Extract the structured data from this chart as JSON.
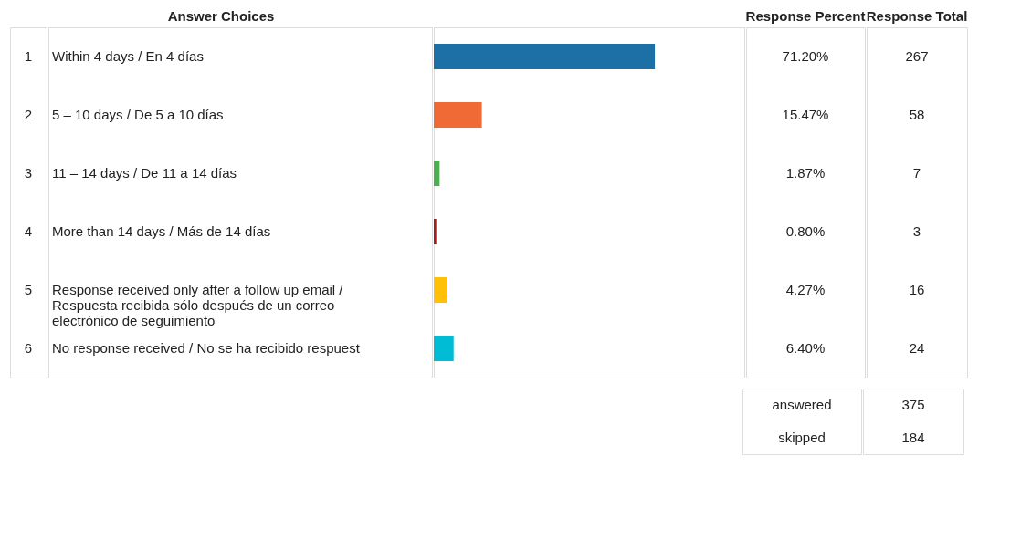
{
  "chart_data": {
    "type": "bar",
    "orientation": "horizontal",
    "ylabel": "Answer Choices",
    "categories": [
      "Within 4 days / En 4 días",
      "5 – 10 days / De 5 a 10 días",
      "11 – 14 days / De 11 a 14 días",
      "More than 14 days / Más de 14 días",
      "Response received only after a follow up email / Respuesta recibida sólo después de un correo electrónico de seguimiento",
      "No response received / No se ha recibido respuest"
    ],
    "values": [
      71.2,
      15.47,
      1.87,
      0.8,
      4.27,
      6.4
    ],
    "colors": [
      "#1d70a6",
      "#f06a36",
      "#4caf50",
      "#a61c1f",
      "#ffc107",
      "#00bcd4"
    ],
    "value_labels": [
      "71.20%",
      "15.47%",
      "1.87%",
      "0.80%",
      "4.27%",
      "6.40%"
    ],
    "xlim": [
      0,
      100
    ],
    "annotations": [
      "Response Percent",
      "Response Total",
      "answered",
      "375",
      "skipped",
      "184",
      "1",
      "2",
      "3",
      "4",
      "5",
      "6",
      "267",
      "58",
      "7",
      "3",
      "16",
      "24"
    ]
  }
}
